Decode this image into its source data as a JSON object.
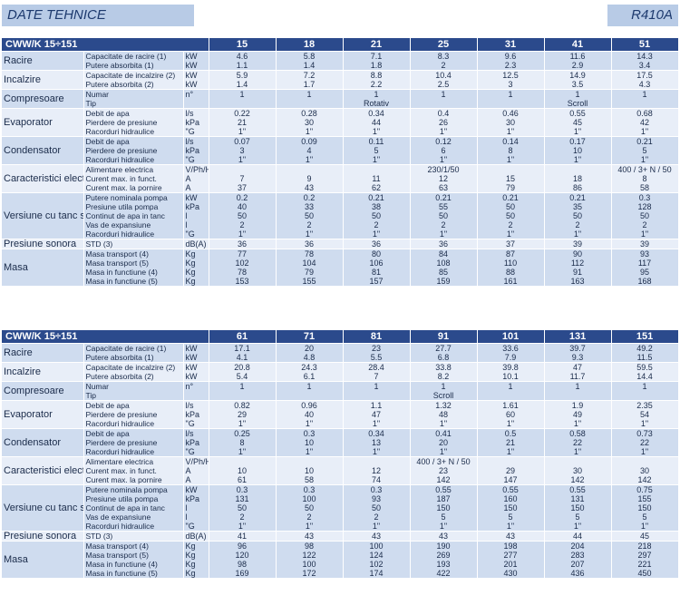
{
  "header": {
    "title": "DATE TEHNICE",
    "refrigerant": "R410A"
  },
  "tables": [
    {
      "model_label": "CWW/K 15÷151",
      "models": [
        "15",
        "18",
        "21",
        "25",
        "31",
        "41",
        "51"
      ],
      "groups": [
        {
          "category": "Racire",
          "rows": [
            {
              "param": "Capacitate de racire (1)",
              "unit": "kW",
              "values": [
                "4.6",
                "5.8",
                "7.1",
                "8.3",
                "9.6",
                "11.6",
                "14.3"
              ]
            },
            {
              "param": "Putere absorbita (1)",
              "unit": "kW",
              "values": [
                "1.1",
                "1.4",
                "1.8",
                "2",
                "2.3",
                "2.9",
                "3.4"
              ]
            }
          ]
        },
        {
          "category": "Incalzire",
          "rows": [
            {
              "param": "Capacitate de incalzire (2)",
              "unit": "kW",
              "values": [
                "5.9",
                "7.2",
                "8.8",
                "10.4",
                "12.5",
                "14.9",
                "17.5"
              ]
            },
            {
              "param": "Putere absorbita (2)",
              "unit": "kW",
              "values": [
                "1.4",
                "1.7",
                "2.2",
                "2.5",
                "3",
                "3.5",
                "4.3"
              ]
            }
          ]
        },
        {
          "category": "Compresoare",
          "rows": [
            {
              "param": "Numar",
              "unit": "n°",
              "values": [
                "1",
                "1",
                "1",
                "1",
                "1",
                "1",
                "1"
              ]
            },
            {
              "param": "Tip",
              "unit": "",
              "values": [
                "",
                "",
                "Rotativ",
                "",
                "",
                "Scroll",
                ""
              ]
            }
          ]
        },
        {
          "category": "Evaporator",
          "rows": [
            {
              "param": "Debit de apa",
              "unit": "l/s",
              "values": [
                "0.22",
                "0.28",
                "0.34",
                "0.4",
                "0.46",
                "0.55",
                "0.68"
              ]
            },
            {
              "param": "Pierdere de presiune",
              "unit": "kPa",
              "values": [
                "21",
                "30",
                "44",
                "26",
                "30",
                "45",
                "42"
              ]
            },
            {
              "param": "Racorduri hidraulice",
              "unit": "\"G",
              "values": [
                "1\"",
                "1\"",
                "1\"",
                "1\"",
                "1\"",
                "1\"",
                "1\""
              ]
            }
          ]
        },
        {
          "category": "Condensator",
          "rows": [
            {
              "param": "Debit de apa",
              "unit": "l/s",
              "values": [
                "0.07",
                "0.09",
                "0.11",
                "0.12",
                "0.14",
                "0.17",
                "0.21"
              ]
            },
            {
              "param": "Pierdere de presiune",
              "unit": "kPa",
              "values": [
                "3",
                "4",
                "5",
                "6",
                "8",
                "10",
                "5"
              ]
            },
            {
              "param": "Racorduri hidraulice",
              "unit": "\"G",
              "values": [
                "1\"",
                "1\"",
                "1\"",
                "1\"",
                "1\"",
                "1\"",
                "1\""
              ]
            }
          ]
        },
        {
          "category": "Caracteristici electrice",
          "rows": [
            {
              "param": "Alimentare electrica",
              "unit": "V/Ph/Hz",
              "values": [
                "",
                "",
                "",
                "230/1/50",
                "",
                "",
                "400 / 3+ N / 50"
              ]
            },
            {
              "param": "Curent max. in funct.",
              "unit": "A",
              "values": [
                "7",
                "9",
                "11",
                "12",
                "15",
                "18",
                "8"
              ]
            },
            {
              "param": "Curent max. la pornire",
              "unit": "A",
              "values": [
                "37",
                "43",
                "62",
                "63",
                "79",
                "86",
                "58"
              ]
            }
          ]
        },
        {
          "category": "Versiune cu tanc si pompa",
          "rows": [
            {
              "param": "Putere nominala pompa",
              "unit": "kW",
              "values": [
                "0.2",
                "0.2",
                "0.21",
                "0.21",
                "0.21",
                "0.21",
                "0.3"
              ]
            },
            {
              "param": "Presiune utila pompa",
              "unit": "kPa",
              "values": [
                "40",
                "33",
                "38",
                "55",
                "50",
                "35",
                "128"
              ]
            },
            {
              "param": "Continut de apa in tanc",
              "unit": "l",
              "values": [
                "50",
                "50",
                "50",
                "50",
                "50",
                "50",
                "50"
              ]
            },
            {
              "param": "Vas de expansiune",
              "unit": "l",
              "values": [
                "2",
                "2",
                "2",
                "2",
                "2",
                "2",
                "2"
              ]
            },
            {
              "param": "Racorduri hidraulice",
              "unit": "\"G",
              "values": [
                "1\"",
                "1\"",
                "1\"",
                "1\"",
                "1\"",
                "1\"",
                "1\""
              ]
            }
          ]
        },
        {
          "category": "Presiune sonora",
          "rows": [
            {
              "param": "STD (3)",
              "unit": "dB(A)",
              "values": [
                "36",
                "36",
                "36",
                "36",
                "37",
                "39",
                "39"
              ]
            }
          ]
        },
        {
          "category": "Masa",
          "rows": [
            {
              "param": "Masa transport (4)",
              "unit": "Kg",
              "values": [
                "77",
                "78",
                "80",
                "84",
                "87",
                "90",
                "93"
              ]
            },
            {
              "param": "Masa transport (5)",
              "unit": "Kg",
              "values": [
                "102",
                "104",
                "106",
                "108",
                "110",
                "112",
                "117"
              ]
            },
            {
              "param": "Masa in functiune (4)",
              "unit": "Kg",
              "values": [
                "78",
                "79",
                "81",
                "85",
                "88",
                "91",
                "95"
              ]
            },
            {
              "param": "Masa in functiune (5)",
              "unit": "Kg",
              "values": [
                "153",
                "155",
                "157",
                "159",
                "161",
                "163",
                "168"
              ]
            }
          ]
        }
      ]
    },
    {
      "model_label": "CWW/K 15÷151",
      "models": [
        "61",
        "71",
        "81",
        "91",
        "101",
        "131",
        "151"
      ],
      "groups": [
        {
          "category": "Racire",
          "rows": [
            {
              "param": "Capacitate de racire (1)",
              "unit": "kW",
              "values": [
                "17.1",
                "20",
                "23",
                "27.7",
                "33.6",
                "39.7",
                "49.2"
              ]
            },
            {
              "param": "Putere absorbita (1)",
              "unit": "kW",
              "values": [
                "4.1",
                "4.8",
                "5.5",
                "6.8",
                "7.9",
                "9.3",
                "11.5"
              ]
            }
          ]
        },
        {
          "category": "Incalzire",
          "rows": [
            {
              "param": "Capacitate de incalzire (2)",
              "unit": "kW",
              "values": [
                "20.8",
                "24.3",
                "28.4",
                "33.8",
                "39.8",
                "47",
                "59.5"
              ]
            },
            {
              "param": "Putere absorbita (2)",
              "unit": "kW",
              "values": [
                "5.4",
                "6.1",
                "7",
                "8.2",
                "10.1",
                "11.7",
                "14.4"
              ]
            }
          ]
        },
        {
          "category": "Compresoare",
          "rows": [
            {
              "param": "Numar",
              "unit": "n°",
              "values": [
                "1",
                "1",
                "1",
                "1",
                "1",
                "1",
                "1"
              ]
            },
            {
              "param": "Tip",
              "unit": "",
              "values": [
                "",
                "",
                "",
                "Scroll",
                "",
                "",
                ""
              ]
            }
          ]
        },
        {
          "category": "Evaporator",
          "rows": [
            {
              "param": "Debit de apa",
              "unit": "l/s",
              "values": [
                "0.82",
                "0.96",
                "1.1",
                "1.32",
                "1.61",
                "1.9",
                "2.35"
              ]
            },
            {
              "param": "Pierdere de presiune",
              "unit": "kPa",
              "values": [
                "29",
                "40",
                "47",
                "48",
                "60",
                "49",
                "54"
              ]
            },
            {
              "param": "Racorduri hidraulice",
              "unit": "\"G",
              "values": [
                "1\"",
                "1\"",
                "1\"",
                "1\"",
                "1\"",
                "1\"",
                "1\""
              ]
            }
          ]
        },
        {
          "category": "Condensator",
          "rows": [
            {
              "param": "Debit de apa",
              "unit": "l/s",
              "values": [
                "0.25",
                "0.3",
                "0.34",
                "0.41",
                "0.5",
                "0.58",
                "0.73"
              ]
            },
            {
              "param": "Pierdere de presiune",
              "unit": "kPa",
              "values": [
                "8",
                "10",
                "13",
                "20",
                "21",
                "22",
                "22"
              ]
            },
            {
              "param": "Racorduri hidraulice",
              "unit": "\"G",
              "values": [
                "1\"",
                "1\"",
                "1\"",
                "1\"",
                "1\"",
                "1\"",
                "1\""
              ]
            }
          ]
        },
        {
          "category": "Caracteristici electrice",
          "rows": [
            {
              "param": "Alimentare electrica",
              "unit": "V/Ph/Hz",
              "values": [
                "",
                "",
                "",
                "400 / 3+ N / 50",
                "",
                "",
                ""
              ]
            },
            {
              "param": "Curent max. in funct.",
              "unit": "A",
              "values": [
                "10",
                "10",
                "12",
                "23",
                "29",
                "30",
                "30"
              ]
            },
            {
              "param": "Curent max. la pornire",
              "unit": "A",
              "values": [
                "61",
                "58",
                "74",
                "142",
                "147",
                "142",
                "142"
              ]
            }
          ]
        },
        {
          "category": "Versiune cu tanc si pompa",
          "rows": [
            {
              "param": "Putere nominala pompa",
              "unit": "kW",
              "values": [
                "0.3",
                "0.3",
                "0.3",
                "0.55",
                "0.55",
                "0.55",
                "0.75"
              ]
            },
            {
              "param": "Presiune utila pompa",
              "unit": "kPa",
              "values": [
                "131",
                "100",
                "93",
                "187",
                "160",
                "131",
                "155"
              ]
            },
            {
              "param": "Continut de apa in tanc",
              "unit": "l",
              "values": [
                "50",
                "50",
                "50",
                "150",
                "150",
                "150",
                "150"
              ]
            },
            {
              "param": "Vas de expansiune",
              "unit": "l",
              "values": [
                "2",
                "2",
                "2",
                "5",
                "5",
                "5",
                "5"
              ]
            },
            {
              "param": "Racorduri hidraulice",
              "unit": "\"G",
              "values": [
                "1\"",
                "1\"",
                "1\"",
                "1\"",
                "1\"",
                "1\"",
                "1\""
              ]
            }
          ]
        },
        {
          "category": "Presiune sonora",
          "rows": [
            {
              "param": "STD (3)",
              "unit": "dB(A)",
              "values": [
                "41",
                "43",
                "43",
                "43",
                "43",
                "44",
                "45"
              ]
            }
          ]
        },
        {
          "category": "Masa",
          "rows": [
            {
              "param": "Masa transport (4)",
              "unit": "Kg",
              "values": [
                "96",
                "98",
                "100",
                "190",
                "198",
                "204",
                "218"
              ]
            },
            {
              "param": "Masa transport (5)",
              "unit": "Kg",
              "values": [
                "120",
                "122",
                "124",
                "269",
                "277",
                "283",
                "297"
              ]
            },
            {
              "param": "Masa in functiune (4)",
              "unit": "Kg",
              "values": [
                "98",
                "100",
                "102",
                "193",
                "201",
                "207",
                "221"
              ]
            },
            {
              "param": "Masa in functiune (5)",
              "unit": "Kg",
              "values": [
                "169",
                "172",
                "174",
                "422",
                "430",
                "436",
                "450"
              ]
            }
          ]
        }
      ]
    }
  ]
}
